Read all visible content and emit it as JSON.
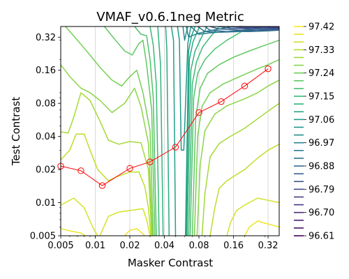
{
  "chart_data": {
    "type": "contour",
    "title": "VMAF_v0.6.1neg Metric",
    "xlabel": "Masker Contrast",
    "ylabel": "Test Contrast",
    "xscale": "log",
    "yscale": "log",
    "xlim": [
      0.005,
      0.4
    ],
    "ylim": [
      0.005,
      0.4
    ],
    "xticks": [
      0.005,
      0.01,
      0.02,
      0.04,
      0.08,
      0.16,
      0.32
    ],
    "xtick_labels": [
      "0.005",
      "0.01",
      "0.02",
      "0.04",
      "0.08",
      "0.16",
      "0.32"
    ],
    "yticks": [
      0.005,
      0.01,
      0.02,
      0.04,
      0.08,
      0.16,
      0.32
    ],
    "ytick_labels": [
      "0.005",
      "0.01",
      "0.02",
      "0.04",
      "0.08",
      "0.16",
      "0.32"
    ],
    "grid": "x-major",
    "colormap": "viridis",
    "colorbar": {
      "levels": [
        96.61,
        96.64,
        96.67,
        96.7,
        96.73,
        96.76,
        96.79,
        96.82,
        96.85,
        96.88,
        96.91,
        96.94,
        96.97,
        97.0,
        97.03,
        97.06,
        97.09,
        97.12,
        97.15,
        97.18,
        97.21,
        97.24,
        97.27,
        97.3,
        97.33,
        97.36,
        97.39,
        97.42
      ],
      "tick_labels": [
        "97.42",
        "97.33",
        "97.24",
        "97.15",
        "97.06",
        "96.97",
        "96.88",
        "96.79",
        "96.70",
        "96.61"
      ]
    },
    "threshold_series": {
      "color": "#ff0000",
      "x": [
        0.005,
        0.0075,
        0.0115,
        0.02,
        0.03,
        0.05,
        0.08,
        0.125,
        0.2,
        0.32
      ],
      "y": [
        0.0215,
        0.0195,
        0.0143,
        0.0205,
        0.0235,
        0.032,
        0.066,
        0.083,
        0.115,
        0.165
      ]
    },
    "contour_lines": [
      {
        "level": 97.4,
        "points": [
          [
            0.005,
            0.0058
          ],
          [
            0.0062,
            0.0055
          ],
          [
            0.0075,
            0.0053
          ],
          [
            0.0082,
            0.005
          ]
        ]
      },
      {
        "level": 97.4,
        "points": [
          [
            0.018,
            0.005
          ],
          [
            0.02,
            0.0056
          ],
          [
            0.023,
            0.0058
          ],
          [
            0.026,
            0.0052
          ],
          [
            0.027,
            0.005
          ]
        ]
      },
      {
        "level": 97.4,
        "points": [
          [
            0.2,
            0.005
          ],
          [
            0.22,
            0.006
          ],
          [
            0.26,
            0.0068
          ],
          [
            0.3,
            0.0065
          ],
          [
            0.36,
            0.0062
          ],
          [
            0.4,
            0.006
          ]
        ]
      },
      {
        "level": 97.37,
        "points": [
          [
            0.005,
            0.0095
          ],
          [
            0.0065,
            0.011
          ],
          [
            0.008,
            0.009
          ],
          [
            0.0095,
            0.006
          ],
          [
            0.0105,
            0.005
          ]
        ]
      },
      {
        "level": 97.37,
        "points": [
          [
            0.011,
            0.005
          ],
          [
            0.013,
            0.0075
          ],
          [
            0.016,
            0.0082
          ],
          [
            0.02,
            0.0085
          ],
          [
            0.026,
            0.0088
          ],
          [
            0.028,
            0.007
          ],
          [
            0.03,
            0.005
          ]
        ]
      },
      {
        "level": 97.37,
        "points": [
          [
            0.14,
            0.005
          ],
          [
            0.15,
            0.0065
          ],
          [
            0.17,
            0.0085
          ],
          [
            0.2,
            0.0095
          ],
          [
            0.26,
            0.011
          ],
          [
            0.32,
            0.0105
          ],
          [
            0.4,
            0.01
          ]
        ]
      },
      {
        "level": 97.34,
        "points": [
          [
            0.005,
            0.0245
          ],
          [
            0.006,
            0.03
          ],
          [
            0.0068,
            0.042
          ],
          [
            0.008,
            0.042
          ],
          [
            0.009,
            0.03
          ],
          [
            0.0105,
            0.02
          ],
          [
            0.013,
            0.0158
          ],
          [
            0.015,
            0.017
          ],
          [
            0.02,
            0.019
          ],
          [
            0.024,
            0.019
          ],
          [
            0.027,
            0.014
          ],
          [
            0.029,
            0.009
          ],
          [
            0.0305,
            0.005
          ]
        ]
      },
      {
        "level": 97.34,
        "points": [
          [
            0.1,
            0.005
          ],
          [
            0.11,
            0.009
          ],
          [
            0.12,
            0.0135
          ],
          [
            0.14,
            0.0158
          ],
          [
            0.17,
            0.018
          ],
          [
            0.2,
            0.02
          ],
          [
            0.26,
            0.0255
          ],
          [
            0.32,
            0.03
          ],
          [
            0.4,
            0.034
          ]
        ]
      },
      {
        "level": 97.31,
        "points": [
          [
            0.005,
            0.044
          ],
          [
            0.0058,
            0.043
          ],
          [
            0.0065,
            0.06
          ],
          [
            0.0075,
            0.1
          ],
          [
            0.009,
            0.085
          ],
          [
            0.011,
            0.055
          ],
          [
            0.013,
            0.037
          ],
          [
            0.016,
            0.034
          ],
          [
            0.02,
            0.036
          ],
          [
            0.025,
            0.035
          ],
          [
            0.029,
            0.02
          ],
          [
            0.031,
            0.005
          ]
        ]
      },
      {
        "level": 97.31,
        "points": [
          [
            0.085,
            0.005
          ],
          [
            0.09,
            0.012
          ],
          [
            0.1,
            0.026
          ],
          [
            0.12,
            0.0345
          ],
          [
            0.15,
            0.04
          ],
          [
            0.2,
            0.0475
          ],
          [
            0.26,
            0.058
          ],
          [
            0.32,
            0.068
          ],
          [
            0.4,
            0.08
          ]
        ]
      },
      {
        "level": 97.28,
        "points": [
          [
            0.005,
            0.18
          ],
          [
            0.006,
            0.14
          ],
          [
            0.0075,
            0.11
          ],
          [
            0.009,
            0.1
          ],
          [
            0.011,
            0.085
          ],
          [
            0.014,
            0.066
          ],
          [
            0.018,
            0.08
          ],
          [
            0.022,
            0.11
          ],
          [
            0.025,
            0.075
          ],
          [
            0.029,
            0.035
          ],
          [
            0.0315,
            0.005
          ]
        ]
      },
      {
        "level": 97.28,
        "points": [
          [
            0.077,
            0.005
          ],
          [
            0.082,
            0.022
          ],
          [
            0.09,
            0.045
          ],
          [
            0.11,
            0.064
          ],
          [
            0.14,
            0.076
          ],
          [
            0.2,
            0.088
          ],
          [
            0.26,
            0.1
          ],
          [
            0.32,
            0.115
          ],
          [
            0.4,
            0.13
          ]
        ]
      },
      {
        "level": 97.25,
        "points": [
          [
            0.0055,
            0.4
          ],
          [
            0.007,
            0.3
          ],
          [
            0.009,
            0.22
          ],
          [
            0.011,
            0.17
          ],
          [
            0.014,
            0.13
          ],
          [
            0.017,
            0.115
          ],
          [
            0.02,
            0.14
          ],
          [
            0.023,
            0.16
          ],
          [
            0.026,
            0.1
          ],
          [
            0.03,
            0.045
          ],
          [
            0.032,
            0.005
          ]
        ]
      },
      {
        "level": 97.25,
        "points": [
          [
            0.073,
            0.005
          ],
          [
            0.078,
            0.04
          ],
          [
            0.085,
            0.075
          ],
          [
            0.1,
            0.1
          ],
          [
            0.13,
            0.12
          ],
          [
            0.18,
            0.14
          ],
          [
            0.26,
            0.165
          ],
          [
            0.32,
            0.18
          ],
          [
            0.4,
            0.2
          ]
        ]
      },
      {
        "level": 97.22,
        "points": [
          [
            0.012,
            0.4
          ],
          [
            0.015,
            0.3
          ],
          [
            0.018,
            0.24
          ],
          [
            0.021,
            0.22
          ],
          [
            0.024,
            0.28
          ],
          [
            0.026,
            0.3
          ],
          [
            0.028,
            0.18
          ],
          [
            0.031,
            0.07
          ],
          [
            0.033,
            0.005
          ]
        ]
      },
      {
        "level": 97.22,
        "points": [
          [
            0.07,
            0.005
          ],
          [
            0.075,
            0.06
          ],
          [
            0.082,
            0.11
          ],
          [
            0.095,
            0.15
          ],
          [
            0.12,
            0.18
          ],
          [
            0.16,
            0.21
          ],
          [
            0.22,
            0.24
          ],
          [
            0.3,
            0.27
          ],
          [
            0.4,
            0.3
          ]
        ]
      },
      {
        "level": 97.19,
        "points": [
          [
            0.022,
            0.4
          ],
          [
            0.025,
            0.34
          ],
          [
            0.028,
            0.33
          ],
          [
            0.03,
            0.2
          ],
          [
            0.032,
            0.09
          ],
          [
            0.034,
            0.005
          ]
        ]
      },
      {
        "level": 97.19,
        "points": [
          [
            0.067,
            0.005
          ],
          [
            0.072,
            0.09
          ],
          [
            0.078,
            0.15
          ],
          [
            0.09,
            0.2
          ],
          [
            0.11,
            0.25
          ],
          [
            0.14,
            0.3
          ],
          [
            0.18,
            0.35
          ],
          [
            0.22,
            0.4
          ]
        ]
      },
      {
        "level": 97.16,
        "points": [
          [
            0.03,
            0.4
          ],
          [
            0.032,
            0.27
          ],
          [
            0.034,
            0.12
          ],
          [
            0.036,
            0.005
          ]
        ]
      },
      {
        "level": 97.16,
        "points": [
          [
            0.065,
            0.005
          ],
          [
            0.07,
            0.12
          ],
          [
            0.076,
            0.19
          ],
          [
            0.086,
            0.26
          ],
          [
            0.1,
            0.32
          ],
          [
            0.12,
            0.4
          ]
        ]
      },
      {
        "level": 97.13,
        "points": [
          [
            0.035,
            0.4
          ],
          [
            0.037,
            0.18
          ],
          [
            0.039,
            0.005
          ]
        ]
      },
      {
        "level": 97.13,
        "points": [
          [
            0.063,
            0.005
          ],
          [
            0.068,
            0.16
          ],
          [
            0.074,
            0.24
          ],
          [
            0.083,
            0.31
          ],
          [
            0.094,
            0.4
          ]
        ]
      },
      {
        "level": 97.1,
        "points": [
          [
            0.041,
            0.4
          ],
          [
            0.042,
            0.25
          ],
          [
            0.044,
            0.005
          ]
        ]
      },
      {
        "level": 97.1,
        "points": [
          [
            0.062,
            0.005
          ],
          [
            0.066,
            0.2
          ],
          [
            0.071,
            0.29
          ],
          [
            0.081,
            0.4
          ]
        ]
      },
      {
        "level": 97.07,
        "points": [
          [
            0.046,
            0.4
          ],
          [
            0.048,
            0.3
          ],
          [
            0.05,
            0.005
          ]
        ]
      },
      {
        "level": 97.07,
        "points": [
          [
            0.061,
            0.005
          ],
          [
            0.065,
            0.24
          ],
          [
            0.069,
            0.33
          ],
          [
            0.074,
            0.4
          ]
        ]
      },
      {
        "level": 97.04,
        "points": [
          [
            0.052,
            0.4
          ],
          [
            0.054,
            0.3
          ],
          [
            0.056,
            0.03
          ],
          [
            0.059,
            0.03
          ],
          [
            0.064,
            0.28
          ],
          [
            0.068,
            0.4
          ]
        ]
      },
      {
        "level": 97.01,
        "points": [
          [
            0.058,
            0.4
          ],
          [
            0.06,
            0.3
          ],
          [
            0.062,
            0.35
          ],
          [
            0.064,
            0.4
          ]
        ]
      },
      {
        "level": 96.98,
        "points": [
          [
            0.062,
            0.4
          ],
          [
            0.065,
            0.32
          ],
          [
            0.075,
            0.34
          ],
          [
            0.09,
            0.36
          ],
          [
            0.12,
            0.38
          ],
          [
            0.16,
            0.4
          ]
        ]
      },
      {
        "level": 96.95,
        "points": [
          [
            0.068,
            0.4
          ],
          [
            0.08,
            0.34
          ],
          [
            0.1,
            0.35
          ],
          [
            0.14,
            0.36
          ],
          [
            0.2,
            0.37
          ],
          [
            0.28,
            0.39
          ],
          [
            0.33,
            0.4
          ]
        ]
      },
      {
        "level": 96.92,
        "points": [
          [
            0.078,
            0.4
          ],
          [
            0.09,
            0.36
          ],
          [
            0.12,
            0.355
          ],
          [
            0.18,
            0.36
          ],
          [
            0.26,
            0.37
          ],
          [
            0.36,
            0.385
          ],
          [
            0.4,
            0.39
          ]
        ]
      },
      {
        "level": 96.89,
        "points": [
          [
            0.09,
            0.4
          ],
          [
            0.1,
            0.37
          ],
          [
            0.14,
            0.36
          ],
          [
            0.22,
            0.36
          ],
          [
            0.32,
            0.365
          ],
          [
            0.4,
            0.37
          ]
        ]
      },
      {
        "level": 96.86,
        "points": [
          [
            0.1,
            0.4
          ],
          [
            0.12,
            0.38
          ],
          [
            0.18,
            0.37
          ],
          [
            0.28,
            0.37
          ],
          [
            0.4,
            0.375
          ]
        ]
      },
      {
        "level": 96.83,
        "points": [
          [
            0.12,
            0.4
          ],
          [
            0.15,
            0.385
          ],
          [
            0.24,
            0.38
          ],
          [
            0.4,
            0.382
          ]
        ]
      },
      {
        "level": 96.8,
        "points": [
          [
            0.14,
            0.4
          ],
          [
            0.2,
            0.39
          ],
          [
            0.4,
            0.39
          ]
        ]
      },
      {
        "level": 96.76,
        "points": [
          [
            0.18,
            0.4
          ],
          [
            0.3,
            0.396
          ],
          [
            0.4,
            0.396
          ]
        ]
      }
    ]
  }
}
